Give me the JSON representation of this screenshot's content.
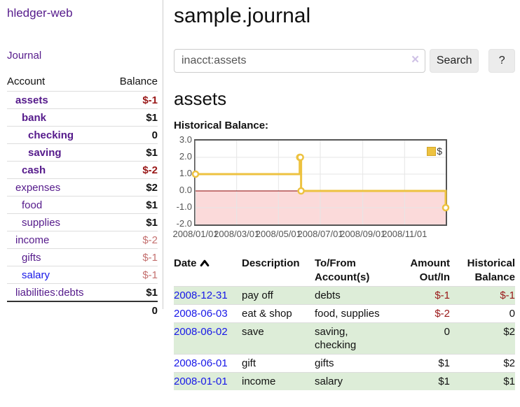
{
  "brand": "hledger-web",
  "nav": {
    "journal_label": "Journal"
  },
  "sidebar": {
    "columns": {
      "account": "Account",
      "balance": "Balance"
    },
    "accounts": [
      {
        "name": "assets",
        "depth": 1,
        "bold": true,
        "link_color": "purple",
        "balance": "$-1",
        "balance_style": "neg"
      },
      {
        "name": "bank",
        "depth": 2,
        "bold": true,
        "link_color": "purple",
        "balance": "$1",
        "balance_style": ""
      },
      {
        "name": "checking",
        "depth": 3,
        "bold": true,
        "link_color": "purple",
        "balance": "0",
        "balance_style": ""
      },
      {
        "name": "saving",
        "depth": 3,
        "bold": true,
        "link_color": "purple",
        "balance": "$1",
        "balance_style": ""
      },
      {
        "name": "cash",
        "depth": 2,
        "bold": true,
        "link_color": "purple",
        "balance": "$-2",
        "balance_style": "neg"
      },
      {
        "name": "expenses",
        "depth": 1,
        "bold": false,
        "link_color": "purple",
        "balance": "$2",
        "balance_style": ""
      },
      {
        "name": "food",
        "depth": 2,
        "bold": false,
        "link_color": "purple",
        "balance": "$1",
        "balance_style": ""
      },
      {
        "name": "supplies",
        "depth": 2,
        "bold": false,
        "link_color": "purple",
        "balance": "$1",
        "balance_style": ""
      },
      {
        "name": "income",
        "depth": 1,
        "bold": false,
        "link_color": "purple",
        "balance": "$-2",
        "balance_style": "muted"
      },
      {
        "name": "gifts",
        "depth": 2,
        "bold": false,
        "link_color": "purple",
        "balance": "$-1",
        "balance_style": "muted"
      },
      {
        "name": "salary",
        "depth": 2,
        "bold": false,
        "link_color": "blue",
        "balance": "$-1",
        "balance_style": "muted"
      },
      {
        "name": "liabilities:debts",
        "depth": 1,
        "bold": false,
        "link_color": "purple",
        "balance": "$1",
        "balance_style": ""
      }
    ],
    "total": "0"
  },
  "header": {
    "title": "sample.journal"
  },
  "search": {
    "value": "inacct:assets",
    "clear_icon": "×",
    "button_label": "Search",
    "help_label": "?"
  },
  "account_page": {
    "heading": "assets",
    "chart_label": "Historical Balance:"
  },
  "chart_data": {
    "type": "line",
    "title": "Historical Balance:",
    "style": "steps-with-points",
    "series": [
      {
        "name": "$",
        "color": "#edc240",
        "points": [
          [
            "2008-01-01",
            1
          ],
          [
            "2008-06-01",
            2
          ],
          [
            "2008-06-02",
            2
          ],
          [
            "2008-06-03",
            0
          ],
          [
            "2008-12-31",
            -1
          ]
        ]
      }
    ],
    "xlim": [
      "2008-01-01",
      "2008-12-31"
    ],
    "ylim": [
      -2,
      3
    ],
    "y_ticks": [
      "3.0",
      "2.0",
      "1.0",
      "0.0",
      "-1.0",
      "-2.0"
    ],
    "x_ticks": [
      "2008/01/01",
      "2008/03/01",
      "2008/05/01",
      "2008/07/01",
      "2008/09/01",
      "2008/11/01"
    ],
    "legend_position": "top-right",
    "grid": true,
    "grid_color": "#e6e6e6",
    "zero_line_color": "#8b0000",
    "negative_fill": "#fbdada",
    "plot_border_color": "#545454"
  },
  "register": {
    "columns": {
      "date": "Date",
      "sort_icon": "chevron-up",
      "description": "Description",
      "tofrom": "To/From Account(s)",
      "amount": "Amount Out/In",
      "historical": "Historical Balance"
    },
    "rows": [
      {
        "date": "2008-12-31",
        "description": "pay off",
        "accounts": "debts",
        "amount": "$-1",
        "amount_style": "neg",
        "balance": "$-1",
        "balance_style": "neg"
      },
      {
        "date": "2008-06-03",
        "description": "eat & shop",
        "accounts": "food, supplies",
        "amount": "$-2",
        "amount_style": "neg",
        "balance": "0",
        "balance_style": ""
      },
      {
        "date": "2008-06-02",
        "description": "save",
        "accounts": "saving, checking",
        "amount": "0",
        "amount_style": "",
        "balance": "$2",
        "balance_style": ""
      },
      {
        "date": "2008-06-01",
        "description": "gift",
        "accounts": "gifts",
        "amount": "$1",
        "amount_style": "",
        "balance": "$2",
        "balance_style": ""
      },
      {
        "date": "2008-01-01",
        "description": "income",
        "accounts": "salary",
        "amount": "$1",
        "amount_style": "",
        "balance": "$1",
        "balance_style": ""
      }
    ]
  },
  "colors": {
    "link_purple": "#551a8b",
    "link_blue": "#1717e8",
    "negative_red": "#991717",
    "muted_red": "#c4706f",
    "row_stripe_green": "#ddedd8",
    "chart_gold": "#edc240"
  }
}
